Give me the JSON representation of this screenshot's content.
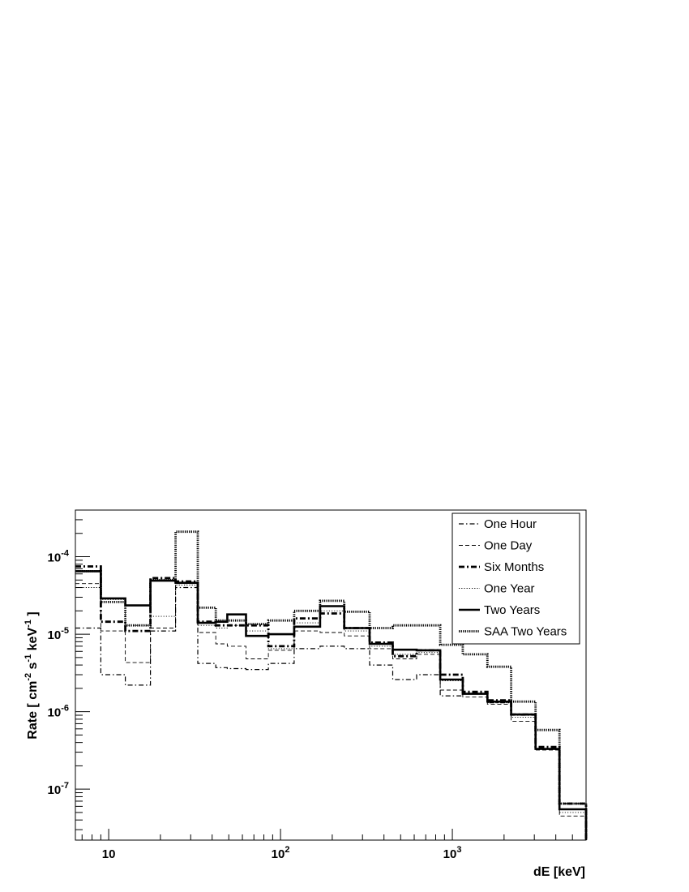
{
  "chart_data": {
    "type": "line",
    "step": true,
    "title": "",
    "xlabel": "dE [keV]",
    "ylabel": "Rate [ cm^-2 s^-1 keV^-1 ]",
    "xscale": "log",
    "yscale": "log",
    "xlim": [
      6.4,
      6000
    ],
    "ylim": [
      2.2e-08,
      0.0004
    ],
    "grid": false,
    "legend_position": "top-right",
    "x_ticks": [
      {
        "base": "10",
        "exp": "",
        "value": 10
      },
      {
        "base": "10",
        "exp": "2",
        "value": 100
      },
      {
        "base": "10",
        "exp": "3",
        "value": 1000
      }
    ],
    "y_ticks": [
      {
        "base": "10",
        "exp": "-7",
        "value": 1e-07
      },
      {
        "base": "10",
        "exp": "-6",
        "value": 1e-06
      },
      {
        "base": "10",
        "exp": "-5",
        "value": 1e-05
      },
      {
        "base": "10",
        "exp": "-4",
        "value": 0.0001
      }
    ],
    "bin_edges": [
      6.4,
      9,
      12.5,
      17.5,
      24.5,
      33,
      42,
      49,
      63,
      85,
      120,
      170,
      235,
      330,
      450,
      620,
      850,
      1150,
      1600,
      2200,
      3050,
      4200,
      6000
    ],
    "series": [
      {
        "name": "One Hour",
        "style": "dashdot",
        "values": [
          1.2e-05,
          3e-06,
          2.2e-06,
          1.1e-05,
          4e-05,
          4.2e-06,
          3.7e-06,
          3.6e-06,
          3.5e-06,
          4.2e-06,
          6.5e-06,
          7e-06,
          6.5e-06,
          4e-06,
          2.6e-06,
          3e-06,
          1.6e-06,
          1.7e-06,
          1.3e-06,
          9e-07,
          3.3e-07,
          6.5e-08,
          2.3e-08
        ]
      },
      {
        "name": "One Day",
        "style": "dashed",
        "values": [
          4.5e-05,
          1.1e-05,
          4.3e-06,
          1.2e-05,
          4.5e-05,
          1.05e-05,
          7.5e-06,
          7e-06,
          4.8e-06,
          6.2e-06,
          1.1e-05,
          1.05e-05,
          9.5e-06,
          6.5e-06,
          4.8e-06,
          5.5e-06,
          1.9e-06,
          1.55e-06,
          1.25e-06,
          7.5e-07,
          3.2e-07,
          4.5e-08,
          2.2e-08
        ]
      },
      {
        "name": "Six Months",
        "style": "dashdotbold",
        "values": [
          7.5e-05,
          1.45e-05,
          1.1e-05,
          5.3e-05,
          4.8e-05,
          1.45e-05,
          1.3e-05,
          1.3e-05,
          1.3e-05,
          7e-06,
          1.6e-05,
          1.85e-05,
          1.2e-05,
          7.8e-06,
          5.2e-06,
          6.2e-06,
          3e-06,
          1.8e-06,
          1.4e-06,
          9.2e-07,
          3.5e-07,
          6.5e-08,
          2.3e-08
        ]
      },
      {
        "name": "One Year",
        "style": "dotted",
        "values": [
          4e-05,
          2.8e-05,
          1.3e-05,
          1.7e-05,
          4.3e-05,
          1.3e-05,
          1.2e-05,
          1.3e-05,
          1.1e-05,
          6.5e-06,
          1.4e-05,
          2e-05,
          1.1e-05,
          7e-06,
          5.5e-06,
          5.8e-06,
          2.5e-06,
          1.7e-06,
          1.3e-06,
          8.5e-07,
          3.3e-07,
          5e-08,
          2.3e-08
        ]
      },
      {
        "name": "Two Years",
        "style": "solidbold",
        "values": [
          6.5e-05,
          2.9e-05,
          2.35e-05,
          4.9e-05,
          4.6e-05,
          1.4e-05,
          1.45e-05,
          1.8e-05,
          9.5e-06,
          1e-05,
          1.25e-05,
          2.3e-05,
          1.2e-05,
          7.5e-06,
          6.3e-06,
          6.2e-06,
          2.6e-06,
          1.7e-06,
          1.35e-06,
          9.2e-07,
          3.3e-07,
          5.5e-08,
          2.2e-08
        ]
      },
      {
        "name": "SAA Two Years",
        "style": "densedot",
        "values": [
          6.5e-05,
          2.6e-05,
          1.3e-05,
          5e-05,
          0.00021,
          2.2e-05,
          1.5e-05,
          1.5e-05,
          1.35e-05,
          1.5e-05,
          2e-05,
          2.7e-05,
          1.95e-05,
          1.2e-05,
          1.3e-05,
          1.3e-05,
          7.3e-06,
          5.5e-06,
          3.8e-06,
          1.35e-06,
          5.8e-07,
          6.5e-08,
          2.3e-08
        ]
      }
    ]
  }
}
